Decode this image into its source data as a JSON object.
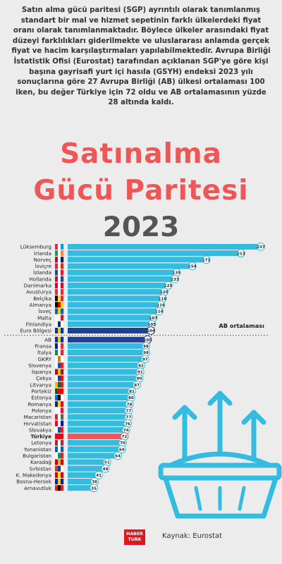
{
  "intro": "Satın alma gücü paritesi (SGP) ayrıntılı olarak tanımlanmış standart bir mal ve hizmet sepetinin farklı ülkelerdeki fiyat oranı olarak tanımlanmaktadır. Böylece ülkeler arasındaki fiyat düzeyi farklılıkları giderilmekte ve uluslararası anlamda gerçek fiyat ve hacim karşılaştırmaları yapılabilmektedir. Avrupa Birliği İstatistik Ofisi (Eurostat) tarafından açıklanan SGP'ye göre kişi başına gayrisafi yurt içi hasıla (GSYH) endeksi 2023 yılı sonuçlarına göre 27 Avrupa Birliği (AB) ülkesi ortalaması 100 iken, bu değer Türkiye için 72 oldu ve AB ortalamasının yüzde 28 altında kaldı.",
  "title_line1": "Satınalma",
  "title_line2": "Gücü Paritesi",
  "title_year": "2023",
  "logo_line1": "HABER",
  "logo_line2": "TURK",
  "source": "Kaynak: Eurostat",
  "colors": {
    "bar": "#33bbe0",
    "highlight_eu_zone": "#1f3f8f",
    "highlight_ab": "#1f3f8f",
    "highlight_turkey": "#ef5757",
    "title": "#ef5757"
  },
  "chart_data": {
    "type": "bar",
    "orientation": "horizontal",
    "reference_label": "AB ortalaması",
    "categories": [
      "Lüksemburg",
      "İrlanda",
      "Norveç",
      "İsviçre",
      "İzlanda",
      "Hollanda",
      "Danimarka",
      "Avusturya",
      "Belçika",
      "Almanya",
      "İsveç",
      "Malta",
      "Finlandiya",
      "Euro Bölgesi",
      "AB",
      "Fransa",
      "İtalya",
      "GKRY",
      "Slovenya",
      "İspanya",
      "Çekya",
      "Litvanya",
      "Portekiz",
      "Estonya",
      "Romanya",
      "Polonya",
      "Macaristan",
      "Hırvatistan",
      "Slovakya",
      "Türkiye",
      "Letonya",
      "Yunanistan",
      "Bulgaristan",
      "Karadağ",
      "Sırbistan",
      "K. Makedonya",
      "Bosna-Hersek",
      "Arnavutluk"
    ],
    "values": [
      237,
      213,
      171,
      154,
      135,
      133,
      125,
      120,
      118,
      116,
      114,
      107,
      105,
      104,
      100,
      98,
      98,
      97,
      92,
      91,
      90,
      87,
      81,
      80,
      78,
      77,
      77,
      76,
      74,
      72,
      70,
      69,
      64,
      51,
      49,
      41,
      36,
      35
    ],
    "highlight": {
      "Euro Bölgesi": "eu_zone",
      "AB": "ab",
      "Türkiye": "turkey"
    },
    "flags": {
      "Lüksemburg": [
        "#ed2939",
        "#ffffff",
        "#00a1de"
      ],
      "İrlanda": [
        "#169b62",
        "#ffffff",
        "#ff883e"
      ],
      "Norveç": [
        "#ba0c2f",
        "#ffffff",
        "#00205b"
      ],
      "İsviçre": [
        "#d52b1e",
        "#ffffff",
        "#d52b1e"
      ],
      "İzlanda": [
        "#02529c",
        "#ffffff",
        "#dc1e35"
      ],
      "Hollanda": [
        "#ae1c28",
        "#ffffff",
        "#21468b"
      ],
      "Danimarka": [
        "#c8102e",
        "#ffffff",
        "#c8102e"
      ],
      "Avusturya": [
        "#ed2939",
        "#ffffff",
        "#ed2939"
      ],
      "Belçika": [
        "#000000",
        "#fae042",
        "#ed2939"
      ],
      "Almanya": [
        "#000000",
        "#dd0000",
        "#ffce00"
      ],
      "İsveç": [
        "#006aa7",
        "#fecc00",
        "#006aa7"
      ],
      "Malta": [
        "#ffffff",
        "#ffffff",
        "#cf142b"
      ],
      "Finlandiya": [
        "#ffffff",
        "#003580",
        "#ffffff"
      ],
      "Euro Bölgesi": [
        "#003399",
        "#ffcc00",
        "#003399"
      ],
      "AB": [
        "#003399",
        "#ffcc00",
        "#003399"
      ],
      "Fransa": [
        "#002395",
        "#ffffff",
        "#ed2939"
      ],
      "İtalya": [
        "#009246",
        "#ffffff",
        "#ce2b37"
      ],
      "GKRY": [
        "#ffffff",
        "#d57800",
        "#ffffff"
      ],
      "Slovenya": [
        "#ffffff",
        "#005da4",
        "#ed1c24"
      ],
      "İspanya": [
        "#aa151b",
        "#f1bf00",
        "#aa151b"
      ],
      "Çekya": [
        "#ffffff",
        "#11457e",
        "#d7141a"
      ],
      "Litvanya": [
        "#fdb913",
        "#006a44",
        "#c1272d"
      ],
      "Portekiz": [
        "#006600",
        "#ff0000",
        "#ff0000"
      ],
      "Estonya": [
        "#0072ce",
        "#000000",
        "#ffffff"
      ],
      "Romanya": [
        "#002b7f",
        "#fcd116",
        "#ce1126"
      ],
      "Polonya": [
        "#ffffff",
        "#ffffff",
        "#dc143c"
      ],
      "Macaristan": [
        "#ce2939",
        "#ffffff",
        "#477050"
      ],
      "Hırvatistan": [
        "#ff0000",
        "#ffffff",
        "#171796"
      ],
      "Slovakya": [
        "#ffffff",
        "#0b4ea2",
        "#ee1c25"
      ],
      "Türkiye": [
        "#e30a17",
        "#e30a17",
        "#e30a17"
      ],
      "Letonya": [
        "#9e3039",
        "#ffffff",
        "#9e3039"
      ],
      "Yunanistan": [
        "#0d5eaf",
        "#ffffff",
        "#0d5eaf"
      ],
      "Bulgaristan": [
        "#ffffff",
        "#00966e",
        "#d62612"
      ],
      "Karadağ": [
        "#c40308",
        "#d4af37",
        "#c40308"
      ],
      "Sırbistan": [
        "#c6363c",
        "#0c4076",
        "#ffffff"
      ],
      "K. Makedonya": [
        "#d20000",
        "#ffe600",
        "#d20000"
      ],
      "Bosna-Hersek": [
        "#002395",
        "#fecb00",
        "#002395"
      ],
      "Arnavutluk": [
        "#e41e20",
        "#000000",
        "#e41e20"
      ]
    }
  }
}
